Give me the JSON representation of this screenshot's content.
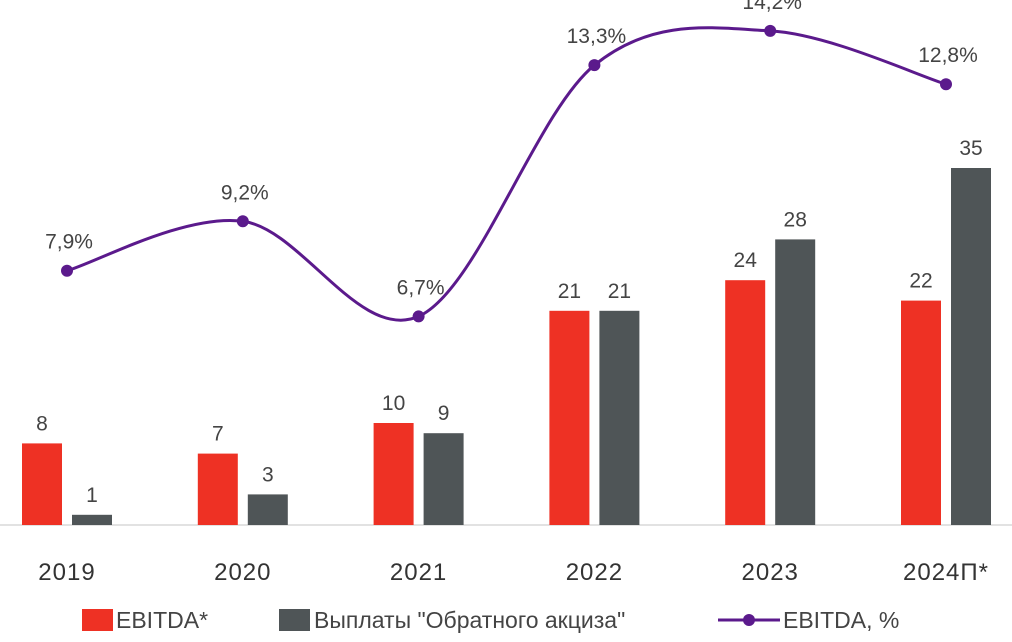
{
  "chart_data": {
    "type": "bar",
    "categories": [
      "2019",
      "2020",
      "2021",
      "2022",
      "2023",
      "2024П*"
    ],
    "series": [
      {
        "name": "EBITDA*",
        "type": "bar",
        "color": "#ee3124",
        "values": [
          8,
          7,
          10,
          21,
          24,
          22
        ],
        "labels": [
          "8",
          "7",
          "10",
          "21",
          "24",
          "22"
        ]
      },
      {
        "name": "Выплаты \"Обратного акциза\"",
        "type": "bar",
        "color": "#4f5557",
        "values": [
          1,
          3,
          9,
          21,
          28,
          35
        ],
        "labels": [
          "1",
          "3",
          "9",
          "21",
          "28",
          "35"
        ]
      },
      {
        "name": "EBITDA, %",
        "type": "line",
        "color": "#5b1a8c",
        "values": [
          7.9,
          9.2,
          6.7,
          13.3,
          14.2,
          12.8
        ],
        "labels": [
          "7,9%",
          "9,2%",
          "6,7%",
          "13,3%",
          "14,2%",
          "12,8%"
        ]
      }
    ],
    "legend_position": "bottom",
    "grid": false
  }
}
